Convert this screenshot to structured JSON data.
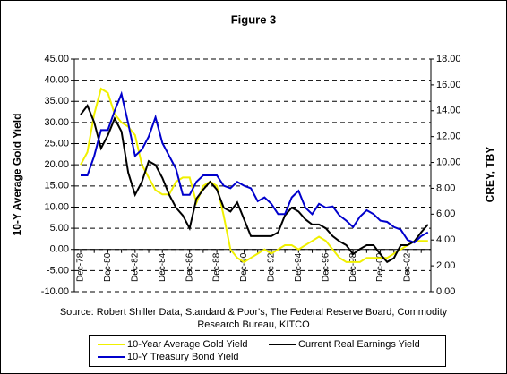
{
  "chart_data": {
    "type": "line",
    "title": "Figure 3",
    "y_label": "10-Y Average Gold Yield",
    "y2_label": "CREY, TBY",
    "source": [
      "Source: Robert Shiller Data, Standard & Poor's, The Federal Reserve Board, Commodity",
      "Research Bureau, KITCO"
    ],
    "categories": [
      "Dec-78",
      null,
      null,
      null,
      "Dec-80",
      null,
      null,
      null,
      "Dec-82",
      null,
      null,
      null,
      "Dec-84",
      null,
      null,
      null,
      "Dec-86",
      null,
      null,
      null,
      "Dec-88",
      null,
      null,
      null,
      "Dec-90",
      null,
      null,
      null,
      "Dec-92",
      null,
      null,
      null,
      "Dec-94",
      null,
      null,
      null,
      "Dec-96",
      null,
      null,
      null,
      "Dec-98",
      null,
      null,
      null,
      "Dec-00",
      null,
      null,
      null,
      "Dec-02",
      null,
      null,
      null
    ],
    "ylim": [
      -10,
      45
    ],
    "yticks": [
      {
        "value": 45,
        "label": "45.00"
      },
      {
        "value": 40,
        "label": "40.00"
      },
      {
        "value": 35,
        "label": "35.00"
      },
      {
        "value": 30,
        "label": "30.00"
      },
      {
        "value": 25,
        "label": "25.00"
      },
      {
        "value": 20,
        "label": "20.00"
      },
      {
        "value": 15,
        "label": "15.00"
      },
      {
        "value": 10,
        "label": "10.00"
      },
      {
        "value": 5,
        "label": "5.00"
      },
      {
        "value": 0,
        "label": "0.00"
      },
      {
        "value": -5,
        "label": "-5.00"
      },
      {
        "value": -10,
        "label": "-10.00"
      }
    ],
    "y2lim": [
      0,
      18
    ],
    "y2ticks": [
      {
        "value": 18,
        "label": "18.00"
      },
      {
        "value": 16,
        "label": "16.00"
      },
      {
        "value": 14,
        "label": "14.00"
      },
      {
        "value": 12,
        "label": "12.00"
      },
      {
        "value": 10,
        "label": "10.00"
      },
      {
        "value": 8,
        "label": "8.00"
      },
      {
        "value": 6,
        "label": "6.00"
      },
      {
        "value": 4,
        "label": "4.00"
      },
      {
        "value": 2,
        "label": "2.00"
      },
      {
        "value": 0,
        "label": "0.00"
      }
    ],
    "grid": true,
    "legend": "bottom",
    "series": [
      {
        "name": "10-Year Average Gold Yield",
        "color": "#f0f000",
        "axis": "y",
        "values": [
          20,
          23,
          32,
          38,
          37,
          32,
          30,
          29,
          27,
          20,
          17,
          14,
          13,
          13,
          16,
          17,
          17,
          11,
          15,
          16,
          15,
          8,
          0,
          -2,
          -3,
          -2,
          -1,
          0,
          -1,
          0,
          1,
          1,
          0,
          1,
          2,
          3,
          2,
          0,
          -2,
          -3,
          -3,
          -3,
          -2,
          -2,
          -2,
          -2,
          -1,
          0,
          1,
          2,
          2,
          2
        ]
      },
      {
        "name": "Current Real Earnings Yield",
        "color": "#000000",
        "axis": "y2",
        "values": [
          13.7,
          14.4,
          13.1,
          11.1,
          12.1,
          13.4,
          12.4,
          9.2,
          7.5,
          8.5,
          10.1,
          9.8,
          8.8,
          7.5,
          6.5,
          5.9,
          4.9,
          7.2,
          7.9,
          8.5,
          7.9,
          6.5,
          6.2,
          6.9,
          5.6,
          4.3,
          4.3,
          4.3,
          4.3,
          4.6,
          5.9,
          6.5,
          6.2,
          5.6,
          5.2,
          5.2,
          4.9,
          4.3,
          3.9,
          3.6,
          2.9,
          3.3,
          3.6,
          3.6,
          2.9,
          2.3,
          2.6,
          3.6,
          3.6,
          3.9,
          4.6,
          5.2
        ]
      },
      {
        "name": "10-Y Treasury Bond Yield",
        "color": "#0000cc",
        "axis": "y2",
        "values": [
          9.0,
          9.0,
          10.5,
          12.5,
          12.5,
          14.0,
          15.3,
          13.0,
          10.5,
          11.0,
          12.0,
          13.5,
          11.5,
          10.5,
          9.5,
          7.5,
          7.5,
          8.5,
          9.0,
          9.0,
          9.0,
          8.2,
          8.0,
          8.5,
          8.2,
          8.0,
          7.0,
          7.3,
          6.8,
          6.0,
          6.0,
          7.3,
          7.8,
          6.5,
          6.0,
          6.8,
          6.5,
          6.6,
          5.9,
          5.5,
          5.0,
          5.8,
          6.3,
          6.0,
          5.5,
          5.4,
          5.0,
          4.8,
          4.0,
          3.8,
          4.3,
          4.6
        ]
      }
    ]
  }
}
